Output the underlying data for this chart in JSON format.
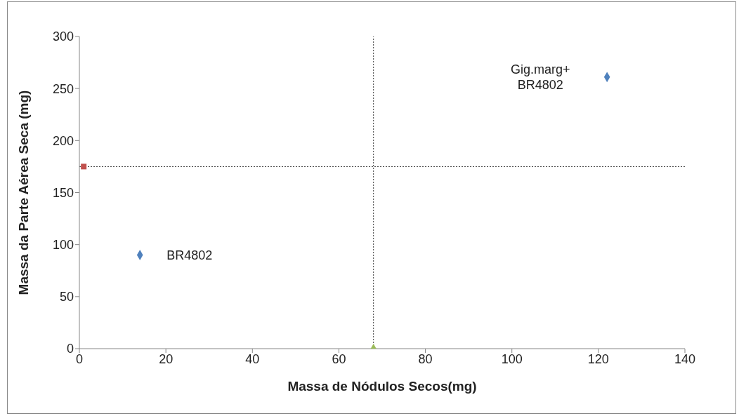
{
  "chart_data": {
    "type": "scatter",
    "xlabel": "Massa de Nódulos Secos(mg)",
    "ylabel": "Massa da Parte Aérea Seca (mg)",
    "xlim": [
      0,
      140
    ],
    "xticks": [
      0,
      20,
      40,
      60,
      80,
      100,
      120,
      140
    ],
    "ylim": [
      0,
      300
    ],
    "yticks": [
      0,
      50,
      100,
      150,
      200,
      250,
      300
    ],
    "grid": false,
    "legend": false,
    "series": [
      {
        "color": "#4f81bd",
        "marker": "diamond",
        "x": [
          14,
          122
        ],
        "values": [
          90,
          261
        ]
      },
      {
        "color": "#c0504d",
        "marker": "square",
        "x": [
          1
        ],
        "values": [
          175
        ]
      },
      {
        "color": "#9bbb59",
        "marker": "triangle",
        "x": [
          68
        ],
        "values": [
          0
        ]
      }
    ],
    "ref_lines": [
      {
        "axis": "y",
        "value": 175,
        "color": "#404040",
        "line_style": "dotted"
      },
      {
        "axis": "x",
        "value": 68,
        "color": "#404040",
        "line_style": "dotted"
      }
    ],
    "annotations": [
      {
        "text": "BR4802",
        "x": 14,
        "y": 90
      },
      {
        "text": "Gig.marg+\nBR4802",
        "x": 122,
        "y": 261
      }
    ]
  }
}
